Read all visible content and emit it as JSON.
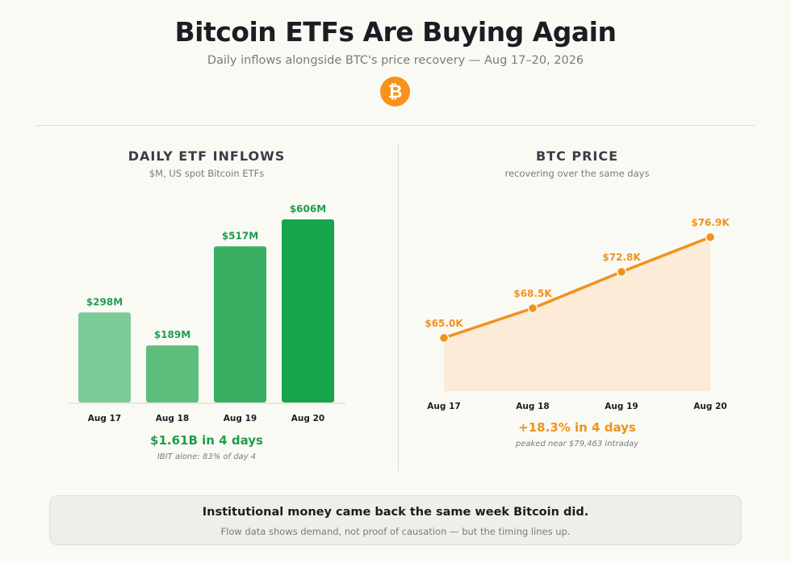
{
  "header": {
    "title": "Bitcoin ETFs Are Buying Again",
    "subtitle": "Daily inflows alongside BTC's price recovery — Aug 17–20, 2026",
    "logo_glyph": "₿"
  },
  "colors": {
    "green_bars": [
      "#7ccb97",
      "#5cbd7c",
      "#3aaf63",
      "#18a44b"
    ],
    "green_text": "#1f9d4c",
    "orange": "#f0921e",
    "orange_fill": "#fcebd6"
  },
  "chart_data": [
    {
      "type": "bar",
      "title": "DAILY ETF INFLOWS",
      "subtitle": "$M, US spot Bitcoin ETFs",
      "categories": [
        "Aug 17",
        "Aug 18",
        "Aug 19",
        "Aug 20"
      ],
      "values": [
        298,
        189,
        517,
        606
      ],
      "data_labels": [
        "$298M",
        "$189M",
        "$517M",
        "$606M"
      ],
      "ylim": [
        0,
        606
      ],
      "grid": false,
      "summary": "$1.61B in 4 days",
      "note": "IBIT alone: 83% of day 4"
    },
    {
      "type": "area",
      "title": "BTC PRICE",
      "subtitle": "recovering over the same days",
      "categories": [
        "Aug 17",
        "Aug 18",
        "Aug 19",
        "Aug 20"
      ],
      "values": [
        65.0,
        68.5,
        72.8,
        76.9
      ],
      "data_labels": [
        "$65.0K",
        "$68.5K",
        "$72.8K",
        "$76.9K"
      ],
      "ylim": [
        58.7,
        76.9
      ],
      "grid": false,
      "summary": "+18.3% in 4 days",
      "note": "peaked near $79,463 intraday"
    }
  ],
  "callout": {
    "headline": "Institutional money came back the same week Bitcoin did.",
    "body": "Flow data shows demand, not proof of causation — but the timing lines up."
  }
}
